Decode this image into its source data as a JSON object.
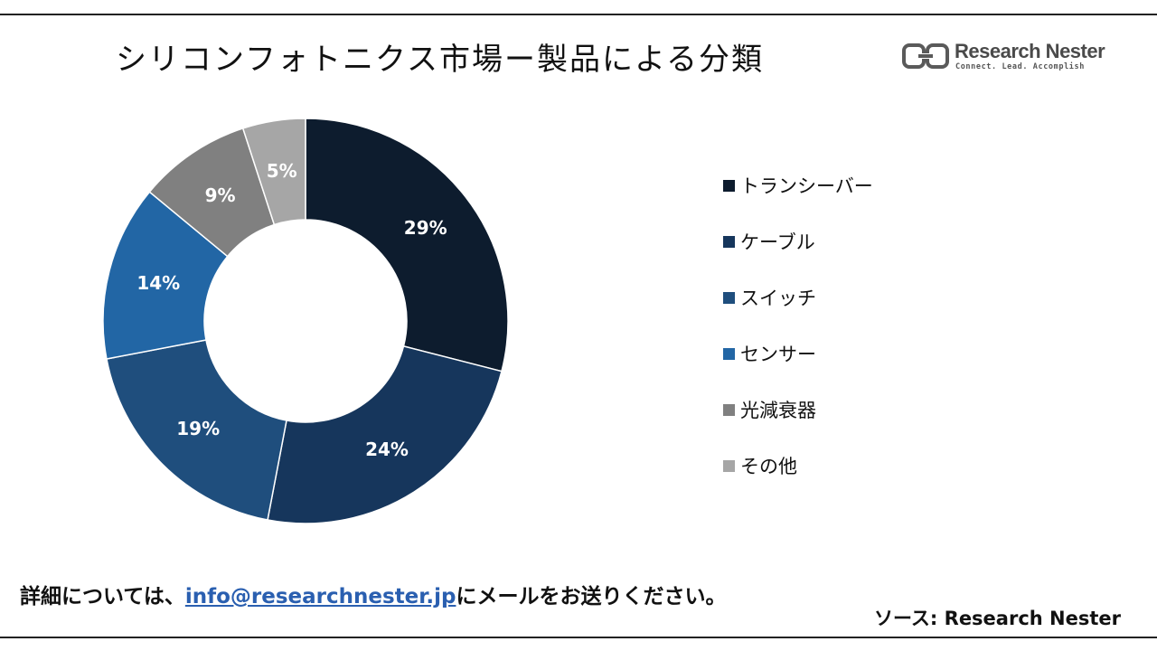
{
  "title": "シリコンフォトニクス市場ー製品による分類",
  "logo": {
    "name": "Research Nester",
    "tagline": "Connect. Lead. Accomplish"
  },
  "chart_data": {
    "type": "donut",
    "title": "シリコンフォトニクス市場ー製品による分類",
    "unit": "%",
    "categories": [
      "トランシーバー",
      "ケーブル",
      "スイッチ",
      "センサー",
      "光減衰器",
      "その他"
    ],
    "values": [
      29,
      24,
      19,
      14,
      9,
      5
    ],
    "data_labels": [
      "29%",
      "24%",
      "19%",
      "14%",
      "9%",
      "5%"
    ],
    "colors": [
      "#0d1c2e",
      "#16365c",
      "#1f4e7d",
      "#2266a5",
      "#808080",
      "#a6a6a6"
    ],
    "start_angle": "12 o'clock",
    "direction": "clockwise",
    "legend_position": "right"
  },
  "footer": {
    "prefix": "詳細については、",
    "email": "info@researchnester.jp",
    "suffix": "にメールをお送りください。"
  },
  "source": "ソース: Research Nester"
}
